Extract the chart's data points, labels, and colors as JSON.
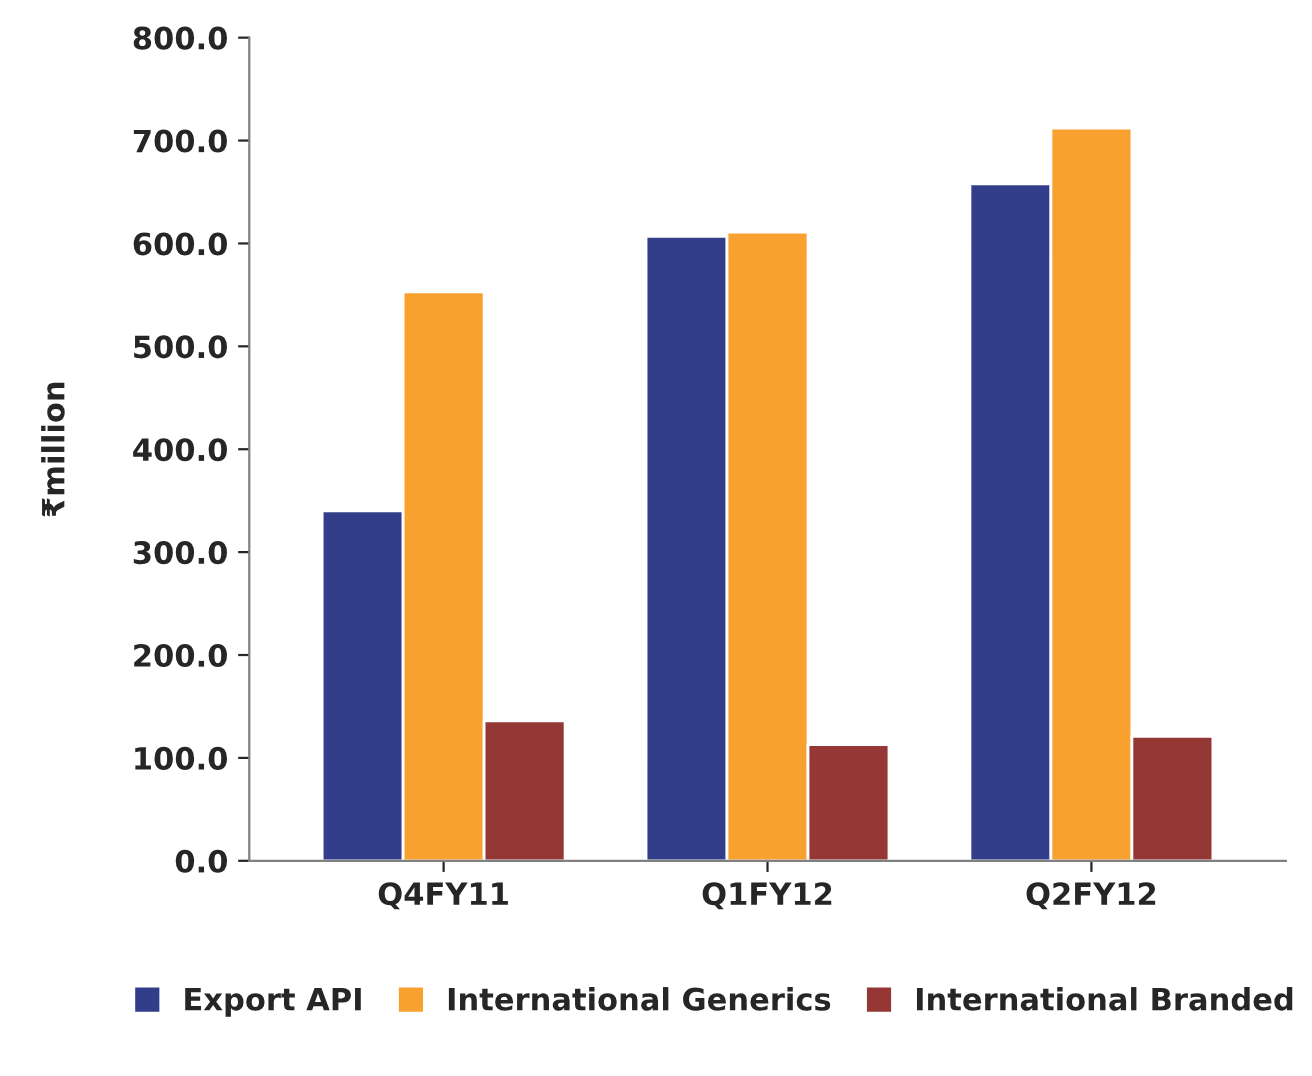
{
  "chart_data": {
    "type": "bar",
    "ylabel": "₹million",
    "categories": [
      "Q4FY11",
      "Q1FY12",
      "Q2FY12"
    ],
    "series": [
      {
        "name": "Export API",
        "color": "#323e8a",
        "values": [
          340,
          607,
          658
        ]
      },
      {
        "name": "International Generics",
        "color": "#f9a12e",
        "values": [
          553,
          611,
          712
        ]
      },
      {
        "name": "International Branded",
        "color": "#953735",
        "values": [
          136,
          113,
          121
        ]
      }
    ],
    "ylim": [
      0,
      800
    ],
    "yticks": [
      {
        "value": 0,
        "label": "0.0"
      },
      {
        "value": 100,
        "label": "100.0"
      },
      {
        "value": 200,
        "label": "200.0"
      },
      {
        "value": 300,
        "label": "300.0"
      },
      {
        "value": 400,
        "label": "400.0"
      },
      {
        "value": 500,
        "label": "500.0"
      },
      {
        "value": 600,
        "label": "600.0"
      },
      {
        "value": 700,
        "label": "700.0"
      },
      {
        "value": 800,
        "label": "800.0"
      }
    ],
    "grid": false,
    "legend": "bottom"
  }
}
